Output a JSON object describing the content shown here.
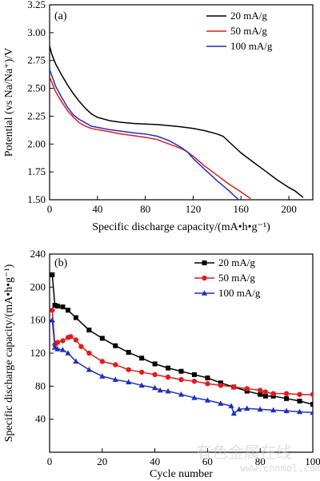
{
  "chart_data": [
    {
      "type": "line",
      "panel_label": "(a)",
      "xlabel": "Specific discharge capacity/(mA•h•g⁻¹)",
      "ylabel": "Potential (vs Na/Na⁺)/V",
      "xlim": [
        0,
        220
      ],
      "ylim": [
        1.5,
        3.25
      ],
      "xticks": [
        "0",
        "40",
        "80",
        "120",
        "160",
        "200"
      ],
      "yticks": [
        "1.50",
        "1.75",
        "2.00",
        "2.25",
        "2.50",
        "2.75",
        "3.00",
        "3.25"
      ],
      "legend_position": "top-right",
      "series": [
        {
          "name": "20 mA/g",
          "color": "#000000",
          "points": [
            [
              0,
              2.88
            ],
            [
              2,
              2.8
            ],
            [
              5,
              2.72
            ],
            [
              10,
              2.62
            ],
            [
              15,
              2.53
            ],
            [
              20,
              2.45
            ],
            [
              25,
              2.38
            ],
            [
              30,
              2.32
            ],
            [
              35,
              2.27
            ],
            [
              40,
              2.24
            ],
            [
              50,
              2.21
            ],
            [
              60,
              2.195
            ],
            [
              70,
              2.185
            ],
            [
              80,
              2.18
            ],
            [
              90,
              2.175
            ],
            [
              100,
              2.165
            ],
            [
              110,
              2.155
            ],
            [
              120,
              2.14
            ],
            [
              130,
              2.12
            ],
            [
              140,
              2.09
            ],
            [
              145,
              2.07
            ],
            [
              150,
              2.02
            ],
            [
              155,
              1.97
            ],
            [
              160,
              1.92
            ],
            [
              170,
              1.84
            ],
            [
              180,
              1.76
            ],
            [
              190,
              1.68
            ],
            [
              200,
              1.61
            ],
            [
              205,
              1.58
            ],
            [
              212,
              1.52
            ]
          ]
        },
        {
          "name": "50 mA/g",
          "color": "#e41a1c",
          "points": [
            [
              0,
              2.6
            ],
            [
              2,
              2.55
            ],
            [
              5,
              2.47
            ],
            [
              10,
              2.38
            ],
            [
              15,
              2.3
            ],
            [
              20,
              2.24
            ],
            [
              25,
              2.19
            ],
            [
              30,
              2.16
            ],
            [
              35,
              2.14
            ],
            [
              40,
              2.13
            ],
            [
              50,
              2.11
            ],
            [
              60,
              2.09
            ],
            [
              70,
              2.075
            ],
            [
              80,
              2.06
            ],
            [
              90,
              2.04
            ],
            [
              100,
              2.0
            ],
            [
              110,
              1.96
            ],
            [
              115,
              1.93
            ],
            [
              120,
              1.89
            ],
            [
              130,
              1.8
            ],
            [
              140,
              1.72
            ],
            [
              150,
              1.64
            ],
            [
              160,
              1.57
            ],
            [
              168,
              1.51
            ]
          ]
        },
        {
          "name": "100 mA/g",
          "color": "#1f2fbf",
          "points": [
            [
              0,
              2.67
            ],
            [
              2,
              2.61
            ],
            [
              5,
              2.52
            ],
            [
              10,
              2.42
            ],
            [
              15,
              2.33
            ],
            [
              20,
              2.26
            ],
            [
              25,
              2.22
            ],
            [
              30,
              2.19
            ],
            [
              35,
              2.16
            ],
            [
              40,
              2.15
            ],
            [
              50,
              2.13
            ],
            [
              60,
              2.115
            ],
            [
              70,
              2.1
            ],
            [
              80,
              2.09
            ],
            [
              90,
              2.07
            ],
            [
              100,
              2.03
            ],
            [
              110,
              1.97
            ],
            [
              115,
              1.93
            ],
            [
              120,
              1.87
            ],
            [
              130,
              1.77
            ],
            [
              140,
              1.67
            ],
            [
              150,
              1.58
            ],
            [
              158,
              1.5
            ]
          ]
        }
      ]
    },
    {
      "type": "line",
      "panel_label": "(b)",
      "xlabel": "Cycle number",
      "ylabel": "Specific discharge capacity/(mA•h•g⁻¹)",
      "xlim": [
        0,
        100
      ],
      "ylim": [
        0,
        240
      ],
      "xticks": [
        "0",
        "20",
        "40",
        "60",
        "80",
        "100"
      ],
      "yticks": [
        "40",
        "80",
        "120",
        "160",
        "200",
        "240"
      ],
      "legend_position": "top-right",
      "series": [
        {
          "name": "20 mA/g",
          "color": "#000000",
          "marker": "square",
          "points": [
            [
              1,
              215
            ],
            [
              2,
              178
            ],
            [
              3,
              177
            ],
            [
              5,
              176
            ],
            [
              7,
              172
            ],
            [
              10,
              163
            ],
            [
              15,
              148
            ],
            [
              20,
              138
            ],
            [
              25,
              129
            ],
            [
              30,
              121
            ],
            [
              35,
              114
            ],
            [
              40,
              107
            ],
            [
              45,
              102
            ],
            [
              50,
              98
            ],
            [
              55,
              94
            ],
            [
              60,
              90
            ],
            [
              65,
              84
            ],
            [
              70,
              79
            ],
            [
              75,
              74
            ],
            [
              80,
              70
            ],
            [
              82,
              68
            ],
            [
              85,
              68
            ],
            [
              90,
              65
            ],
            [
              95,
              62
            ],
            [
              100,
              58
            ]
          ]
        },
        {
          "name": "50 mA/g",
          "color": "#e41a1c",
          "marker": "circle",
          "points": [
            [
              1,
              172
            ],
            [
              2,
              130
            ],
            [
              3,
              133
            ],
            [
              5,
              135
            ],
            [
              7,
              139
            ],
            [
              8,
              140
            ],
            [
              10,
              136
            ],
            [
              12,
              128
            ],
            [
              15,
              120
            ],
            [
              20,
              110
            ],
            [
              25,
              106
            ],
            [
              30,
              100
            ],
            [
              35,
              97
            ],
            [
              40,
              94
            ],
            [
              45,
              91
            ],
            [
              50,
              88
            ],
            [
              55,
              86
            ],
            [
              60,
              83
            ],
            [
              65,
              81
            ],
            [
              70,
              79
            ],
            [
              75,
              77
            ],
            [
              80,
              75
            ],
            [
              82,
              73
            ],
            [
              85,
              71
            ],
            [
              90,
              71
            ],
            [
              95,
              70
            ],
            [
              100,
              70
            ]
          ]
        },
        {
          "name": "100 mA/g",
          "color": "#1f2fbf",
          "marker": "triangle",
          "points": [
            [
              1,
              160
            ],
            [
              2,
              127
            ],
            [
              3,
              125
            ],
            [
              5,
              124
            ],
            [
              7,
              120
            ],
            [
              10,
              110
            ],
            [
              15,
              100
            ],
            [
              20,
              92
            ],
            [
              25,
              88
            ],
            [
              30,
              85
            ],
            [
              35,
              81
            ],
            [
              40,
              78
            ],
            [
              42,
              75
            ],
            [
              45,
              74
            ],
            [
              50,
              70
            ],
            [
              55,
              66
            ],
            [
              60,
              63
            ],
            [
              65,
              59
            ],
            [
              69,
              56
            ],
            [
              70,
              47
            ],
            [
              72,
              52
            ],
            [
              75,
              53
            ],
            [
              80,
              52
            ],
            [
              85,
              51
            ],
            [
              90,
              50
            ],
            [
              95,
              49
            ],
            [
              100,
              48
            ]
          ]
        }
      ]
    }
  ],
  "watermark": {
    "line1": "有色金属在线",
    "line2": "www.cnnmol.com"
  }
}
